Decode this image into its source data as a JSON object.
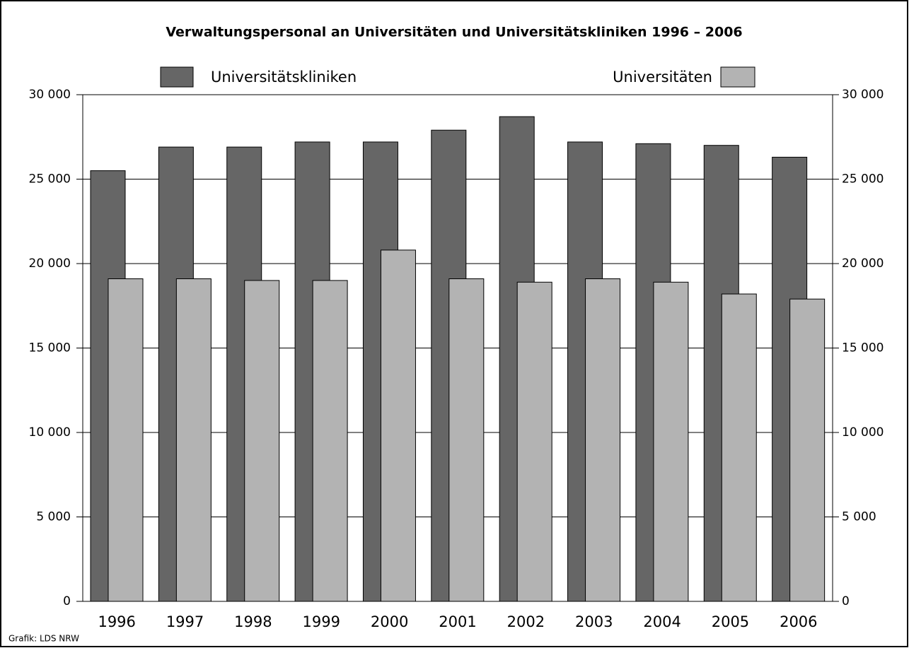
{
  "chart_data": {
    "type": "bar",
    "title": "Verwaltungspersonal an Universitäten und Universitätskliniken 1996 – 2006",
    "source": "Grafik: LDS NRW",
    "categories": [
      "1996",
      "1997",
      "1998",
      "1999",
      "2000",
      "2001",
      "2002",
      "2003",
      "2004",
      "2005",
      "2006"
    ],
    "series": [
      {
        "name": "Universitätskliniken",
        "color": "#666666",
        "values": [
          25500,
          26900,
          26900,
          27200,
          27200,
          27900,
          28700,
          27200,
          27100,
          27000,
          26300
        ]
      },
      {
        "name": "Universitäten",
        "color": "#b3b3b3",
        "values": [
          19100,
          19100,
          19000,
          19000,
          20800,
          19100,
          18900,
          19100,
          18900,
          18200,
          17900
        ]
      }
    ],
    "ylim": [
      0,
      30000
    ],
    "yticks": [
      0,
      {
        "value": 5000,
        "label": "5 000"
      },
      {
        "value": 10000,
        "label": "10 000"
      },
      {
        "value": 15000,
        "label": "15 000"
      },
      {
        "value": 20000,
        "label": "20 000"
      },
      {
        "value": 25000,
        "label": "25 000"
      },
      {
        "value": 30000,
        "label": "30 000"
      }
    ],
    "y2lim": [
      0,
      30000
    ],
    "y2ticks": [
      0,
      {
        "value": 5000,
        "label": "5 000"
      },
      {
        "value": 10000,
        "label": "10 000"
      },
      {
        "value": 15000,
        "label": "15 000"
      },
      {
        "value": 20000,
        "label": "20 000"
      },
      {
        "value": 25000,
        "label": "25 000"
      },
      {
        "value": 30000,
        "label": "30 000"
      }
    ],
    "grid": true
  }
}
